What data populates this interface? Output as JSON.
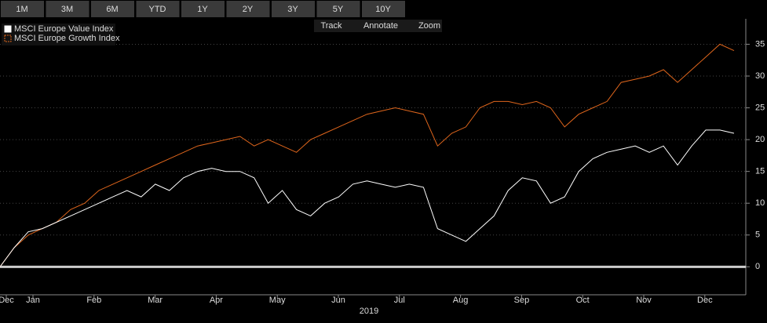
{
  "toolbar": {
    "buttons": [
      "1M",
      "3M",
      "6M",
      "YTD",
      "1Y",
      "2Y",
      "3Y",
      "5Y",
      "10Y"
    ],
    "tools": [
      "Track",
      "Annotate",
      "Zoom"
    ]
  },
  "chart_data": {
    "type": "line",
    "month_labels": [
      "Dec",
      "Jan",
      "Feb",
      "Mar",
      "Apr",
      "May",
      "Jun",
      "Jul",
      "Aug",
      "Sep",
      "Oct",
      "Nov",
      "Dec"
    ],
    "xlabel": "2019",
    "ylim": [
      -4.4,
      39
    ],
    "yticks": [
      0,
      5,
      10,
      15,
      20,
      25,
      30,
      35
    ],
    "legend": "top-left",
    "series": [
      {
        "name": "MSCI Europe Value Index",
        "color": "#ffffff",
        "values": [
          0,
          3,
          5.5,
          6,
          7,
          8,
          9,
          10,
          11,
          12,
          11,
          13,
          12,
          14,
          15,
          15.5,
          15,
          15,
          14,
          10,
          12,
          9,
          8,
          10,
          11,
          13,
          13.5,
          13,
          12.5,
          13,
          12.5,
          6,
          5,
          4,
          6,
          8,
          12,
          14,
          13.5,
          10,
          11,
          15,
          17,
          18,
          18.5,
          19,
          18,
          19,
          16,
          19,
          21.5,
          21.5,
          21
        ]
      },
      {
        "name": "MSCI Europe Growth Index",
        "color": "#e0661c",
        "values": [
          0,
          3,
          5,
          6,
          7,
          9,
          10,
          12,
          13,
          14,
          15,
          16,
          17,
          18,
          19,
          19.5,
          20,
          20.5,
          19,
          20,
          19,
          18,
          20,
          21,
          22,
          23,
          24,
          24.5,
          25,
          24.5,
          24,
          19,
          21,
          22,
          25,
          26,
          26,
          25.5,
          26,
          25,
          22,
          24,
          25,
          26,
          29,
          29.5,
          30,
          31,
          29,
          31,
          33,
          35,
          34
        ]
      }
    ]
  }
}
